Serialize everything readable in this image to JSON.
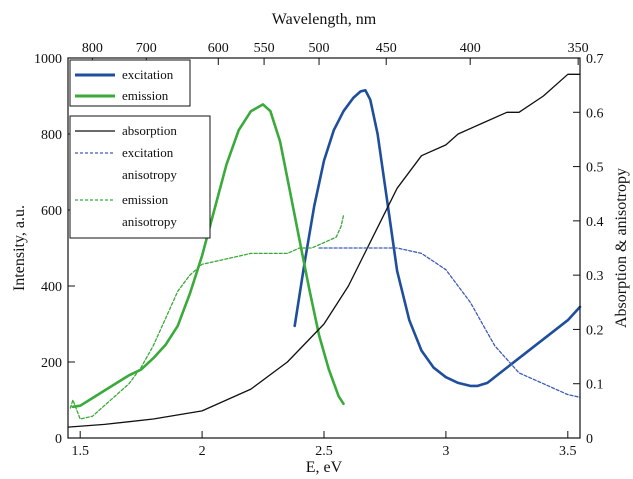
{
  "chart_data": {
    "type": "line",
    "xlabel": "E, eV",
    "x2label": "Wavelength, nm",
    "ylabel": "Intensity, a.u.",
    "y2label": "Absorption & anisotropy",
    "xlim": [
      1.45,
      3.55
    ],
    "ylim": [
      0,
      1000
    ],
    "y2lim": [
      0,
      0.7
    ],
    "x_ticks": [
      "1.5",
      "2",
      "2.5",
      "3",
      "3.5"
    ],
    "x_tick_values": [
      1.5,
      2,
      2.5,
      3,
      3.5
    ],
    "y_ticks": [
      "0",
      "200",
      "400",
      "600",
      "800",
      "1000"
    ],
    "y_tick_values": [
      0,
      200,
      400,
      600,
      800,
      1000
    ],
    "y2_ticks": [
      "0",
      "0.1",
      "0.2",
      "0.3",
      "0.4",
      "0.5",
      "0.6",
      "0.7"
    ],
    "y2_tick_values": [
      0,
      0.1,
      0.2,
      0.3,
      0.4,
      0.5,
      0.6,
      0.7
    ],
    "x2_ticks": [
      "800",
      "700",
      "600",
      "550",
      "500",
      "450",
      "400",
      "350"
    ],
    "x2_tick_values": [
      800,
      700,
      600,
      550,
      500,
      450,
      400,
      350
    ],
    "grid": false,
    "legend_primary": {
      "placement": "top-left",
      "entries": [
        "excitation",
        "emission"
      ]
    },
    "legend_secondary": {
      "placement": "left",
      "entries": [
        "absorption",
        "excitation",
        "anisotropy",
        "emission",
        "anisotropy"
      ]
    },
    "series": [
      {
        "name": "excitation",
        "axis": "left",
        "color": "#1f4e9c",
        "style": "solid",
        "width": 2.6,
        "x": [
          2.38,
          2.42,
          2.46,
          2.5,
          2.54,
          2.58,
          2.62,
          2.65,
          2.67,
          2.69,
          2.72,
          2.76,
          2.8,
          2.85,
          2.9,
          2.95,
          3.0,
          3.05,
          3.1,
          3.13,
          3.17,
          3.22,
          3.3,
          3.4,
          3.5,
          3.55
        ],
        "y": [
          295,
          460,
          610,
          730,
          810,
          860,
          895,
          912,
          915,
          890,
          800,
          620,
          440,
          310,
          230,
          185,
          160,
          145,
          137,
          137,
          145,
          170,
          210,
          260,
          310,
          345
        ]
      },
      {
        "name": "emission",
        "axis": "left",
        "color": "#3aaa3a",
        "style": "solid",
        "width": 2.6,
        "x": [
          1.47,
          1.5,
          1.55,
          1.6,
          1.65,
          1.7,
          1.75,
          1.8,
          1.85,
          1.9,
          1.95,
          2.0,
          2.05,
          2.1,
          2.15,
          2.2,
          2.25,
          2.28,
          2.32,
          2.36,
          2.4,
          2.44,
          2.48,
          2.52,
          2.56,
          2.58
        ],
        "y": [
          82,
          85,
          105,
          125,
          145,
          165,
          180,
          210,
          245,
          295,
          380,
          480,
          600,
          720,
          810,
          860,
          878,
          860,
          780,
          650,
          520,
          390,
          270,
          180,
          110,
          90
        ]
      },
      {
        "name": "absorption",
        "axis": "right",
        "color": "#111111",
        "style": "solid",
        "width": 1.3,
        "x": [
          1.45,
          1.6,
          1.8,
          2.0,
          2.2,
          2.35,
          2.5,
          2.6,
          2.7,
          2.8,
          2.9,
          3.0,
          3.05,
          3.15,
          3.25,
          3.3,
          3.4,
          3.5,
          3.55
        ],
        "y": [
          0.02,
          0.025,
          0.035,
          0.05,
          0.09,
          0.14,
          0.21,
          0.28,
          0.37,
          0.46,
          0.52,
          0.54,
          0.56,
          0.58,
          0.6,
          0.6,
          0.63,
          0.67,
          0.67
        ]
      },
      {
        "name": "excitation anisotropy",
        "axis": "right",
        "color": "#3e5cb8",
        "style": "dashed",
        "width": 1.3,
        "x": [
          2.48,
          2.6,
          2.7,
          2.8,
          2.9,
          3.0,
          3.1,
          3.2,
          3.3,
          3.4,
          3.5,
          3.55
        ],
        "y": [
          0.35,
          0.35,
          0.35,
          0.35,
          0.34,
          0.31,
          0.25,
          0.17,
          0.12,
          0.1,
          0.08,
          0.075
        ]
      },
      {
        "name": "emission anisotropy",
        "axis": "right",
        "color": "#3aaa3a",
        "style": "dashed",
        "width": 1.3,
        "x": [
          1.46,
          1.47,
          1.5,
          1.55,
          1.6,
          1.65,
          1.7,
          1.75,
          1.8,
          1.85,
          1.9,
          1.95,
          2.0,
          2.1,
          2.2,
          2.3,
          2.35,
          2.4,
          2.45,
          2.5,
          2.55,
          2.57,
          2.58
        ],
        "y": [
          0.055,
          0.07,
          0.035,
          0.04,
          0.06,
          0.08,
          0.1,
          0.13,
          0.17,
          0.22,
          0.27,
          0.3,
          0.32,
          0.33,
          0.34,
          0.34,
          0.34,
          0.35,
          0.35,
          0.36,
          0.37,
          0.39,
          0.41
        ]
      }
    ]
  }
}
